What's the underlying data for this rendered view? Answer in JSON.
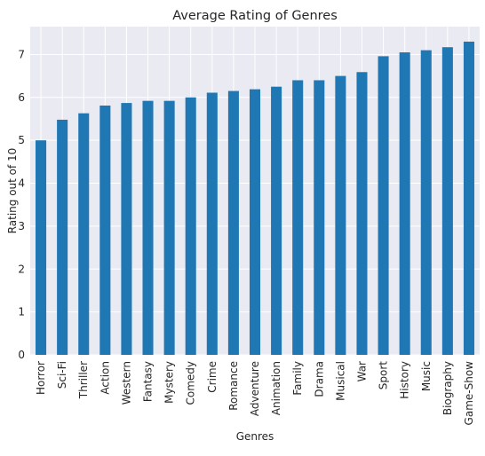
{
  "chart_data": {
    "type": "bar",
    "title": "Average Rating of Genres",
    "xlabel": "Genres",
    "ylabel": "Rating out of 10",
    "categories": [
      "Horror",
      "Sci-Fi",
      "Thriller",
      "Action",
      "Western",
      "Fantasy",
      "Mystery",
      "Comedy",
      "Crime",
      "Romance",
      "Adventure",
      "Animation",
      "Family",
      "Drama",
      "Musical",
      "War",
      "Sport",
      "History",
      "Music",
      "Biography",
      "Game-Show"
    ],
    "values": [
      5.0,
      5.48,
      5.63,
      5.81,
      5.87,
      5.92,
      5.92,
      6.0,
      6.11,
      6.15,
      6.19,
      6.25,
      6.4,
      6.4,
      6.5,
      6.59,
      6.96,
      7.05,
      7.1,
      7.17,
      7.3
    ],
    "ylim": [
      0,
      7.65
    ],
    "yticks": [
      0,
      1,
      2,
      3,
      4,
      5,
      6,
      7
    ],
    "grid": true,
    "legend": "none",
    "bar_color": "#1f77b4",
    "plot_background": "#eaeaf2",
    "grid_color": "#ffffff"
  }
}
